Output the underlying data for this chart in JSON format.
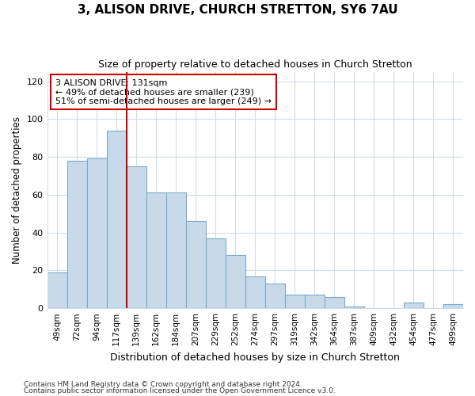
{
  "title": "3, ALISON DRIVE, CHURCH STRETTON, SY6 7AU",
  "subtitle": "Size of property relative to detached houses in Church Stretton",
  "xlabel": "Distribution of detached houses by size in Church Stretton",
  "ylabel": "Number of detached properties",
  "bar_color": "#c8daea",
  "bar_edge_color": "#7aaac8",
  "categories": [
    "49sqm",
    "72sqm",
    "94sqm",
    "117sqm",
    "139sqm",
    "162sqm",
    "184sqm",
    "207sqm",
    "229sqm",
    "252sqm",
    "274sqm",
    "297sqm",
    "319sqm",
    "342sqm",
    "364sqm",
    "387sqm",
    "409sqm",
    "432sqm",
    "454sqm",
    "477sqm",
    "499sqm"
  ],
  "values": [
    19,
    78,
    79,
    94,
    75,
    61,
    61,
    46,
    37,
    28,
    17,
    13,
    7,
    7,
    6,
    1,
    0,
    0,
    3,
    0,
    2
  ],
  "ylim": [
    0,
    125
  ],
  "yticks": [
    0,
    20,
    40,
    60,
    80,
    100,
    120
  ],
  "vline_index": 4,
  "vline_color": "#cc0000",
  "property_line_label": "3 ALISON DRIVE: 131sqm",
  "annotation_line1": "← 49% of detached houses are smaller (239)",
  "annotation_line2": "51% of semi-detached houses are larger (249) →",
  "annotation_box_facecolor": "#ffffff",
  "annotation_box_edgecolor": "#cc0000",
  "footer1": "Contains HM Land Registry data © Crown copyright and database right 2024.",
  "footer2": "Contains public sector information licensed under the Open Government Licence v3.0.",
  "background_color": "#ffffff",
  "grid_color": "#d0dce8"
}
